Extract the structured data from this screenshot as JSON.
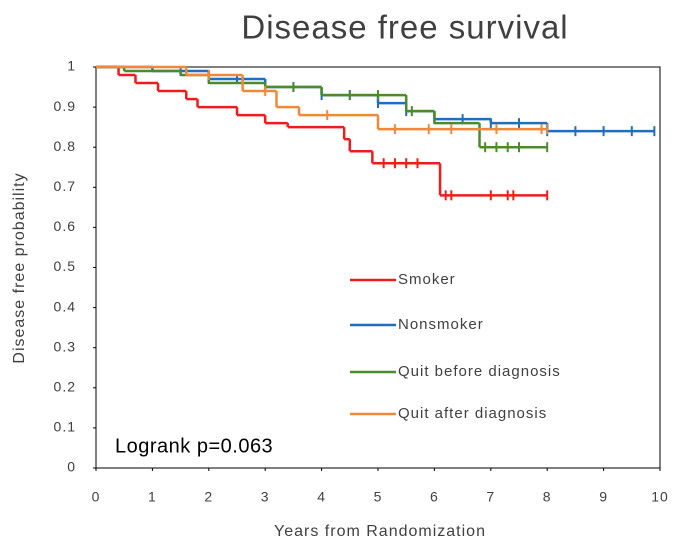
{
  "chart_data": {
    "type": "km",
    "title": "Disease free survival",
    "xlabel": "Years from Randomization",
    "ylabel": "Disease free probability",
    "annotation": "Logrank p=0.063",
    "xlim": [
      0,
      10
    ],
    "ylim": [
      0,
      1
    ],
    "xticks": [
      0,
      1,
      2,
      3,
      4,
      5,
      6,
      7,
      8,
      9,
      10
    ],
    "yticks": [
      0,
      0.1,
      0.2,
      0.3,
      0.4,
      0.5,
      0.6,
      0.7,
      0.8,
      0.9,
      1
    ],
    "series": [
      {
        "name": "Smoker",
        "color": "#ee1c1c",
        "x": [
          0,
          0.4,
          0.7,
          1.1,
          1.6,
          1.8,
          2.5,
          3.0,
          3.4,
          4.4,
          4.5,
          4.9,
          6.1
        ],
        "values": [
          1,
          0.98,
          0.96,
          0.94,
          0.92,
          0.9,
          0.88,
          0.86,
          0.85,
          0.82,
          0.79,
          0.76,
          0.68
        ],
        "censored": [
          5.1,
          5.3,
          5.5,
          5.7,
          6.2,
          6.3,
          7.0,
          7.3,
          7.4,
          8.0
        ]
      },
      {
        "name": "Nonsmoker",
        "color": "#1f6fbf",
        "x": [
          0,
          1,
          2,
          3,
          4,
          5,
          5.5,
          6,
          7,
          8
        ],
        "values": [
          1,
          0.99,
          0.97,
          0.95,
          0.93,
          0.91,
          0.89,
          0.87,
          0.86,
          0.84
        ],
        "censored": [
          1.5,
          2,
          2.5,
          3,
          3.5,
          4,
          4.5,
          5,
          5.5,
          6,
          6.5,
          7,
          7.5,
          8,
          8.5,
          9,
          9.5,
          9.9
        ]
      },
      {
        "name": "Quit before diagnosis",
        "color": "#4c8b2b",
        "x": [
          0,
          0.5,
          1.5,
          2.0,
          3.0,
          4.0,
          5.5,
          6.0,
          6.8
        ],
        "values": [
          1,
          0.99,
          0.98,
          0.96,
          0.95,
          0.93,
          0.89,
          0.86,
          0.8
        ],
        "censored": [
          3.5,
          4.5,
          5,
          5.6,
          6.9,
          7.1,
          7.3,
          7.5,
          8.0
        ]
      },
      {
        "name": "Quit after diagnosis",
        "color": "#f0883a",
        "x": [
          0,
          1.6,
          2.6,
          3.2,
          3.6,
          5.0
        ],
        "values": [
          1,
          0.98,
          0.94,
          0.9,
          0.88,
          0.845
        ],
        "censored": [
          2,
          3,
          4.1,
          5.3,
          5.9,
          6.3,
          7.1,
          7.9,
          8.0
        ]
      }
    ]
  }
}
